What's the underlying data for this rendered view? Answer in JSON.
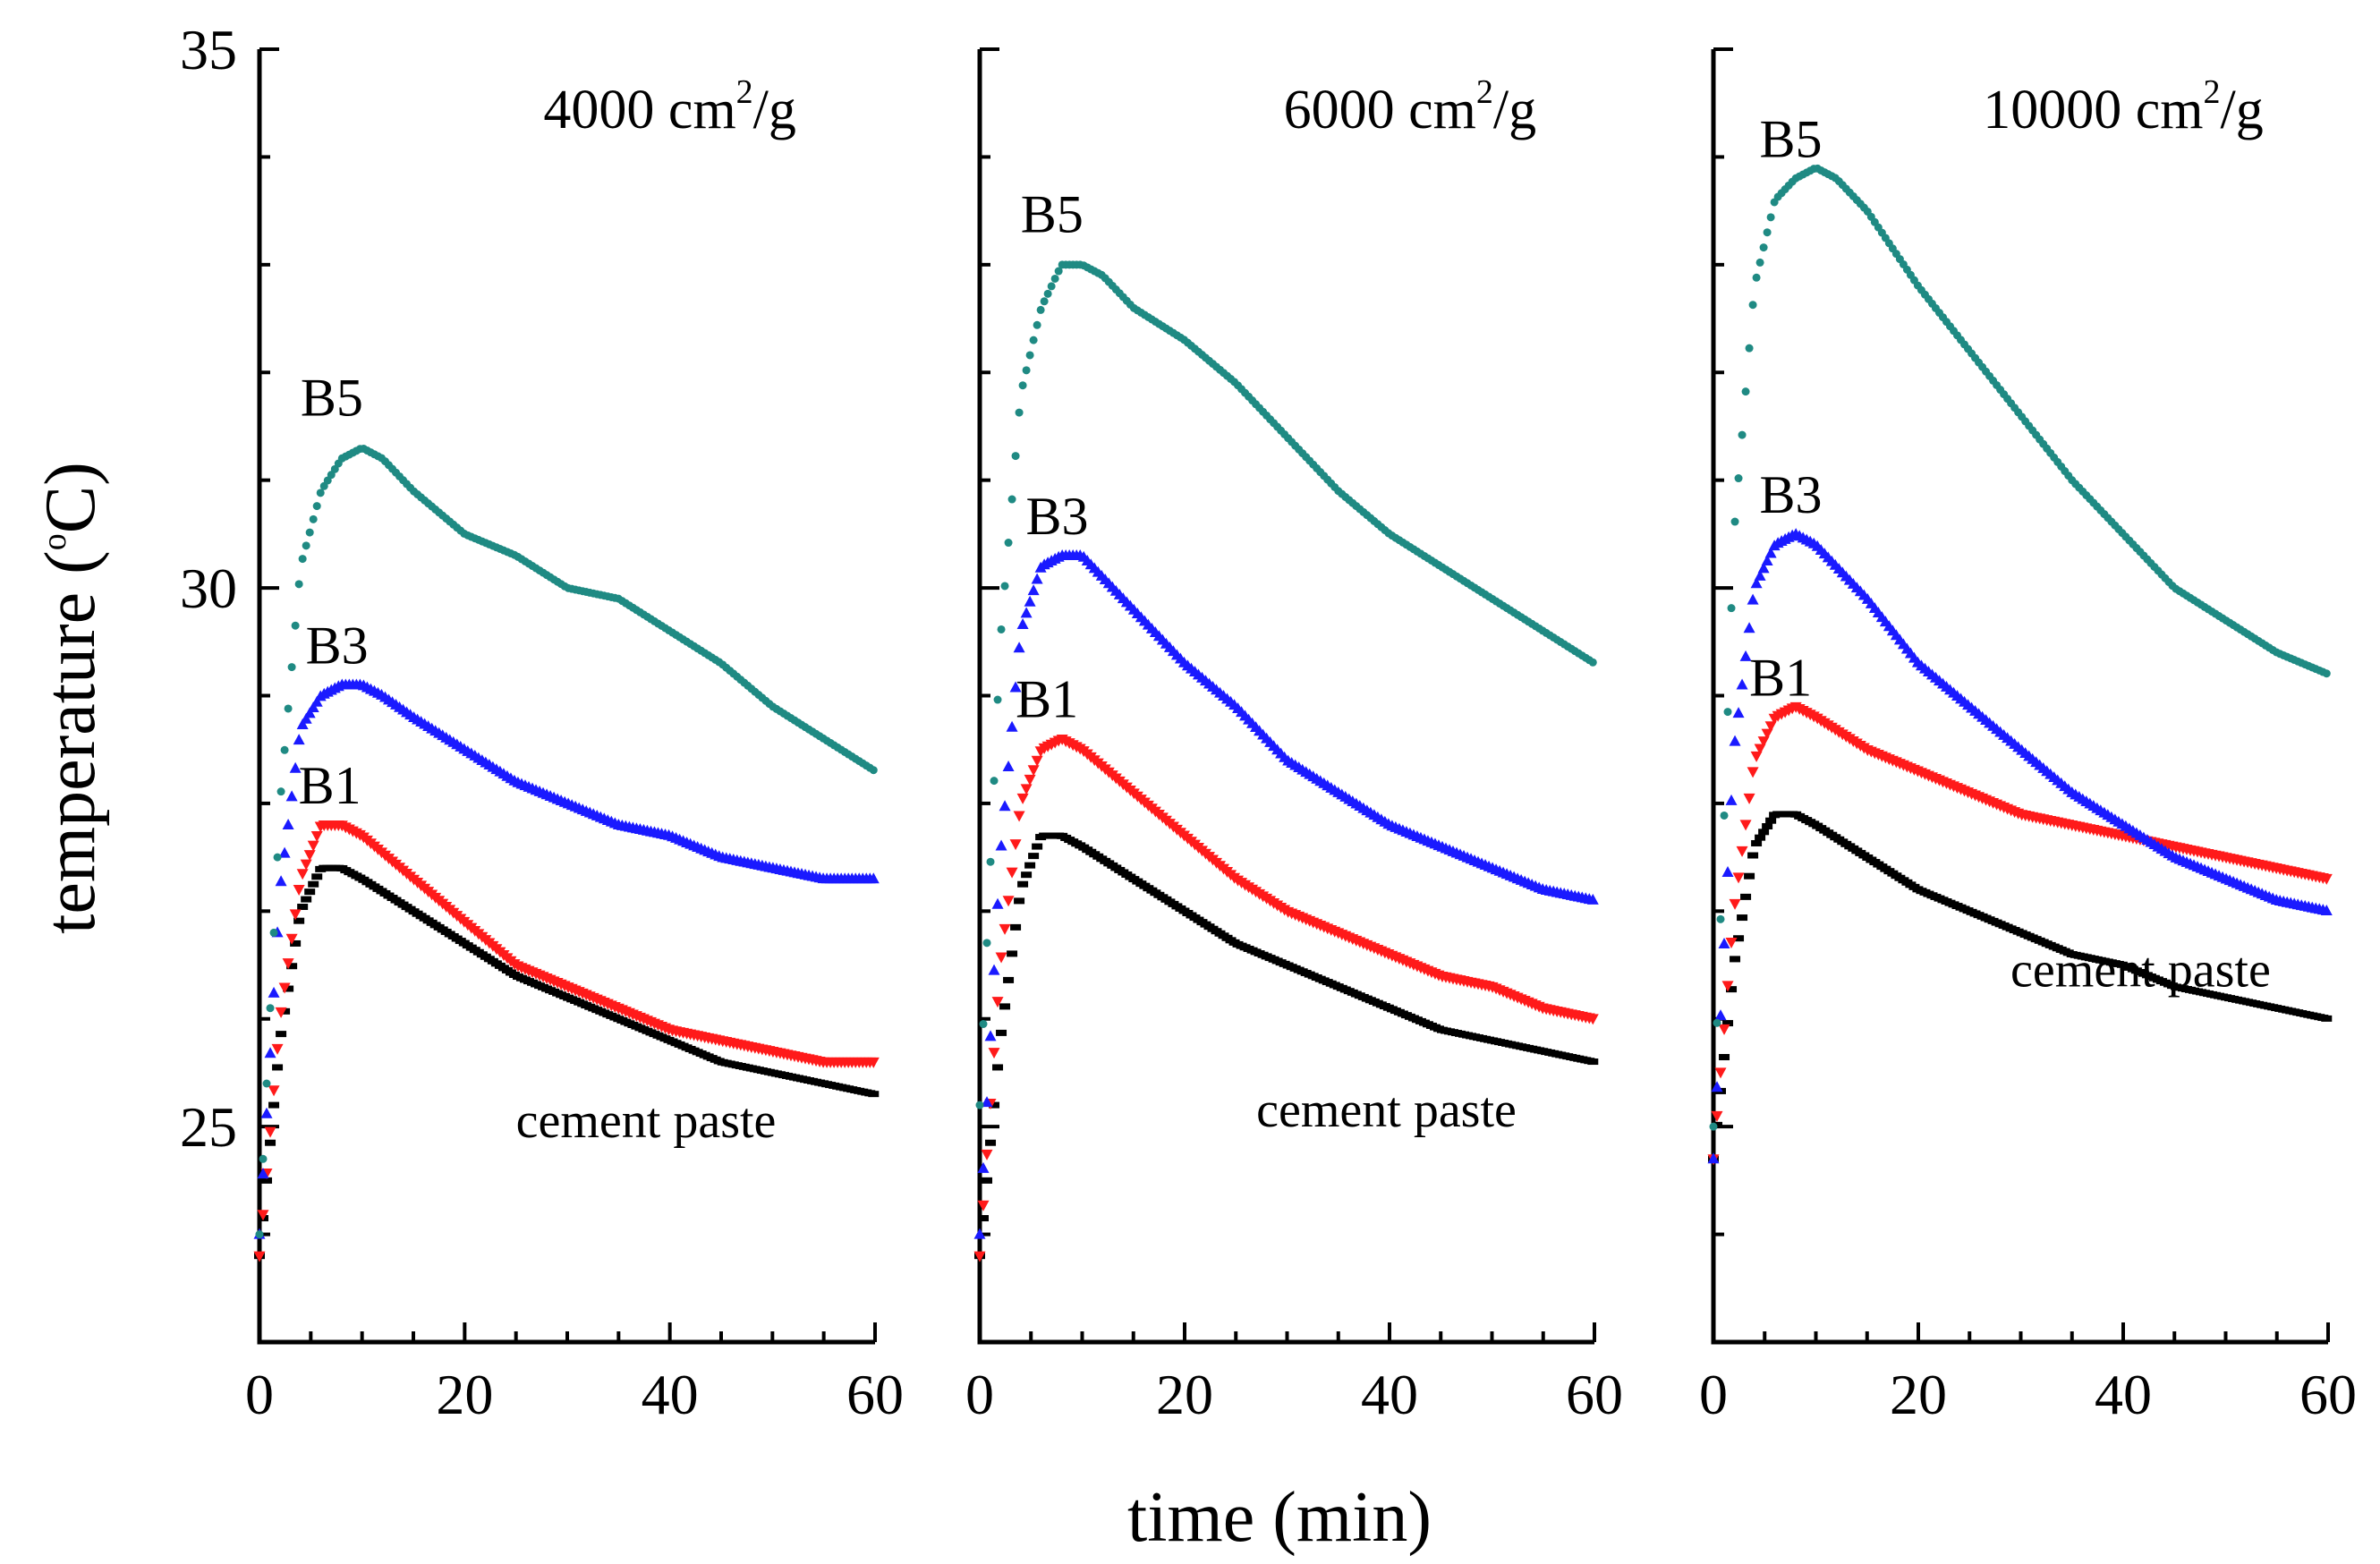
{
  "chart_data": {
    "type": "scatter",
    "xlabel": "time (min)",
    "ylabel_main": "temperature (",
    "ylabel_sup": "o",
    "ylabel_unit": "C)",
    "x_ticks": [
      "0",
      "20",
      "40",
      "60"
    ],
    "y_ticks": [
      "25",
      "30",
      "35"
    ],
    "xlim": [
      0,
      60
    ],
    "ylim": [
      23,
      35
    ],
    "colors": {
      "cement paste": "#000000",
      "B1": "#ff1a1a",
      "B3": "#1a1aff",
      "B5": "#1f8a83"
    },
    "panels": [
      {
        "id": "4000",
        "title_main": "4000 cm",
        "title_sup": "2",
        "title_tail": "/g",
        "show_y_tick_labels": true,
        "labels": {
          "B5": "B5",
          "B3": "B3",
          "B1": "B1",
          "cement paste": "cement paste"
        },
        "series": [
          {
            "name": "cement paste",
            "marker": "dash",
            "points": [
              [
                0,
                23.8
              ],
              [
                2,
                25.8
              ],
              [
                4,
                27.0
              ],
              [
                6,
                27.4
              ],
              [
                8,
                27.4
              ],
              [
                10,
                27.3
              ],
              [
                15,
                27.0
              ],
              [
                20,
                26.7
              ],
              [
                25,
                26.4
              ],
              [
                30,
                26.2
              ],
              [
                35,
                26.0
              ],
              [
                40,
                25.8
              ],
              [
                45,
                25.6
              ],
              [
                50,
                25.5
              ],
              [
                55,
                25.4
              ],
              [
                60,
                25.3
              ]
            ]
          },
          {
            "name": "B1",
            "marker": "triangle-down",
            "points": [
              [
                0,
                23.8
              ],
              [
                2,
                26.0
              ],
              [
                4,
                27.3
              ],
              [
                6,
                27.8
              ],
              [
                8,
                27.8
              ],
              [
                10,
                27.7
              ],
              [
                15,
                27.3
              ],
              [
                20,
                26.9
              ],
              [
                25,
                26.5
              ],
              [
                30,
                26.3
              ],
              [
                35,
                26.1
              ],
              [
                40,
                25.9
              ],
              [
                45,
                25.8
              ],
              [
                50,
                25.7
              ],
              [
                55,
                25.6
              ],
              [
                60,
                25.6
              ]
            ]
          },
          {
            "name": "B3",
            "marker": "triangle-up",
            "points": [
              [
                0,
                24.0
              ],
              [
                2,
                27.2
              ],
              [
                4,
                28.7
              ],
              [
                6,
                29.0
              ],
              [
                8,
                29.1
              ],
              [
                10,
                29.1
              ],
              [
                12,
                29.0
              ],
              [
                15,
                28.8
              ],
              [
                20,
                28.5
              ],
              [
                25,
                28.2
              ],
              [
                30,
                28.0
              ],
              [
                35,
                27.8
              ],
              [
                40,
                27.7
              ],
              [
                45,
                27.5
              ],
              [
                50,
                27.4
              ],
              [
                55,
                27.3
              ],
              [
                60,
                27.3
              ]
            ]
          },
          {
            "name": "B5",
            "marker": "dot",
            "points": [
              [
                0,
                24.0
              ],
              [
                2,
                28.0
              ],
              [
                4,
                30.2
              ],
              [
                6,
                30.9
              ],
              [
                8,
                31.2
              ],
              [
                10,
                31.3
              ],
              [
                12,
                31.2
              ],
              [
                15,
                30.9
              ],
              [
                20,
                30.5
              ],
              [
                25,
                30.3
              ],
              [
                30,
                30.0
              ],
              [
                35,
                29.9
              ],
              [
                40,
                29.6
              ],
              [
                45,
                29.3
              ],
              [
                50,
                28.9
              ],
              [
                55,
                28.6
              ],
              [
                60,
                28.3
              ]
            ]
          }
        ]
      },
      {
        "id": "6000",
        "title_main": "6000 cm",
        "title_sup": "2",
        "title_tail": "/g",
        "show_y_tick_labels": false,
        "labels": {
          "B5": "B5",
          "B3": "B3",
          "B1": "B1",
          "cement paste": "cement paste"
        },
        "series": [
          {
            "name": "cement paste",
            "marker": "dash",
            "points": [
              [
                0,
                23.8
              ],
              [
                2,
                25.8
              ],
              [
                4,
                27.2
              ],
              [
                6,
                27.7
              ],
              [
                8,
                27.7
              ],
              [
                10,
                27.6
              ],
              [
                15,
                27.3
              ],
              [
                20,
                27.0
              ],
              [
                25,
                26.7
              ],
              [
                30,
                26.5
              ],
              [
                35,
                26.3
              ],
              [
                40,
                26.1
              ],
              [
                45,
                25.9
              ],
              [
                50,
                25.8
              ],
              [
                55,
                25.7
              ],
              [
                60,
                25.6
              ]
            ]
          },
          {
            "name": "B1",
            "marker": "triangle-down",
            "points": [
              [
                0,
                23.8
              ],
              [
                2,
                26.5
              ],
              [
                4,
                28.0
              ],
              [
                6,
                28.5
              ],
              [
                8,
                28.6
              ],
              [
                10,
                28.5
              ],
              [
                15,
                28.1
              ],
              [
                20,
                27.7
              ],
              [
                25,
                27.3
              ],
              [
                30,
                27.0
              ],
              [
                35,
                26.8
              ],
              [
                40,
                26.6
              ],
              [
                45,
                26.4
              ],
              [
                50,
                26.3
              ],
              [
                55,
                26.1
              ],
              [
                60,
                26.0
              ]
            ]
          },
          {
            "name": "B3",
            "marker": "triangle-up",
            "points": [
              [
                0,
                24.0
              ],
              [
                2,
                27.5
              ],
              [
                4,
                29.6
              ],
              [
                6,
                30.2
              ],
              [
                8,
                30.3
              ],
              [
                10,
                30.3
              ],
              [
                12,
                30.1
              ],
              [
                15,
                29.8
              ],
              [
                20,
                29.3
              ],
              [
                25,
                28.9
              ],
              [
                30,
                28.4
              ],
              [
                35,
                28.1
              ],
              [
                40,
                27.8
              ],
              [
                45,
                27.6
              ],
              [
                50,
                27.4
              ],
              [
                55,
                27.2
              ],
              [
                60,
                27.1
              ]
            ]
          },
          {
            "name": "B5",
            "marker": "dot",
            "points": [
              [
                0,
                25.2
              ],
              [
                2,
                29.5
              ],
              [
                4,
                31.8
              ],
              [
                6,
                32.6
              ],
              [
                8,
                33.0
              ],
              [
                10,
                33.0
              ],
              [
                12,
                32.9
              ],
              [
                15,
                32.6
              ],
              [
                20,
                32.3
              ],
              [
                25,
                31.9
              ],
              [
                30,
                31.4
              ],
              [
                35,
                30.9
              ],
              [
                40,
                30.5
              ],
              [
                45,
                30.2
              ],
              [
                50,
                29.9
              ],
              [
                55,
                29.6
              ],
              [
                60,
                29.3
              ]
            ]
          }
        ]
      },
      {
        "id": "10000",
        "title_main": "10000 cm",
        "title_sup": "2",
        "title_tail": "/g",
        "show_y_tick_labels": false,
        "labels": {
          "B5": "B5",
          "B3": "B3",
          "B1": "B1",
          "cement paste": "cement paste"
        },
        "series": [
          {
            "name": "cement paste",
            "marker": "dash",
            "points": [
              [
                0,
                24.7
              ],
              [
                2,
                26.5
              ],
              [
                4,
                27.6
              ],
              [
                6,
                27.9
              ],
              [
                8,
                27.9
              ],
              [
                10,
                27.8
              ],
              [
                15,
                27.5
              ],
              [
                20,
                27.2
              ],
              [
                25,
                27.0
              ],
              [
                30,
                26.8
              ],
              [
                35,
                26.6
              ],
              [
                40,
                26.5
              ],
              [
                45,
                26.3
              ],
              [
                50,
                26.2
              ],
              [
                55,
                26.1
              ],
              [
                60,
                26.0
              ]
            ]
          },
          {
            "name": "B1",
            "marker": "triangle-down",
            "points": [
              [
                0,
                24.7
              ],
              [
                2,
                27.0
              ],
              [
                4,
                28.4
              ],
              [
                6,
                28.8
              ],
              [
                8,
                28.9
              ],
              [
                10,
                28.8
              ],
              [
                15,
                28.5
              ],
              [
                20,
                28.3
              ],
              [
                25,
                28.1
              ],
              [
                30,
                27.9
              ],
              [
                35,
                27.8
              ],
              [
                40,
                27.7
              ],
              [
                45,
                27.6
              ],
              [
                50,
                27.5
              ],
              [
                55,
                27.4
              ],
              [
                60,
                27.3
              ]
            ]
          },
          {
            "name": "B3",
            "marker": "triangle-up",
            "points": [
              [
                0,
                24.7
              ],
              [
                2,
                28.5
              ],
              [
                4,
                30.0
              ],
              [
                6,
                30.4
              ],
              [
                8,
                30.5
              ],
              [
                10,
                30.4
              ],
              [
                12,
                30.2
              ],
              [
                15,
                29.9
              ],
              [
                20,
                29.3
              ],
              [
                25,
                28.9
              ],
              [
                30,
                28.5
              ],
              [
                35,
                28.1
              ],
              [
                40,
                27.8
              ],
              [
                45,
                27.5
              ],
              [
                50,
                27.3
              ],
              [
                55,
                27.1
              ],
              [
                60,
                27.0
              ]
            ]
          },
          {
            "name": "B5",
            "marker": "dot",
            "points": [
              [
                0,
                25.0
              ],
              [
                2,
                30.5
              ],
              [
                4,
                32.8
              ],
              [
                6,
                33.6
              ],
              [
                8,
                33.8
              ],
              [
                10,
                33.9
              ],
              [
                12,
                33.8
              ],
              [
                15,
                33.5
              ],
              [
                20,
                32.8
              ],
              [
                25,
                32.2
              ],
              [
                30,
                31.6
              ],
              [
                35,
                31.0
              ],
              [
                40,
                30.5
              ],
              [
                45,
                30.0
              ],
              [
                50,
                29.7
              ],
              [
                55,
                29.4
              ],
              [
                60,
                29.2
              ]
            ]
          }
        ]
      }
    ]
  }
}
